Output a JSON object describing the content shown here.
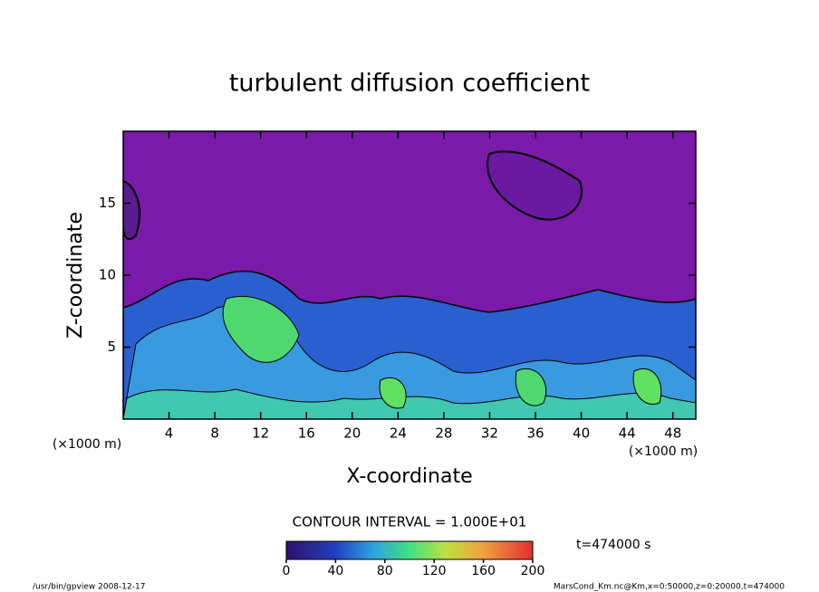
{
  "chart_data": {
    "type": "contour",
    "title": "turbulent diffusion coefficient",
    "x_label": "X-coordinate",
    "y_label": "Z-coordinate",
    "x_unit": "(×1000 m)",
    "y_unit": "(×1000 m)",
    "xlim": [
      0,
      50
    ],
    "ylim": [
      0,
      20
    ],
    "xticks": [
      4,
      8,
      12,
      16,
      20,
      24,
      28,
      32,
      36,
      40,
      44,
      48
    ],
    "yticks": [
      5,
      10,
      15
    ],
    "colorbar": {
      "lim": [
        0,
        200
      ],
      "ticks": [
        0,
        40,
        80,
        120,
        160,
        200
      ]
    },
    "contour_interval_label": "CONTOUR INTERVAL = 1.000E+01",
    "time_label": "t=474000 s",
    "footer_left": "/usr/bin/gpview  2008-12-17",
    "footer_right": "MarsCond_Km.nc@Km,x=0:50000,z=0:20000,t=474000"
  }
}
